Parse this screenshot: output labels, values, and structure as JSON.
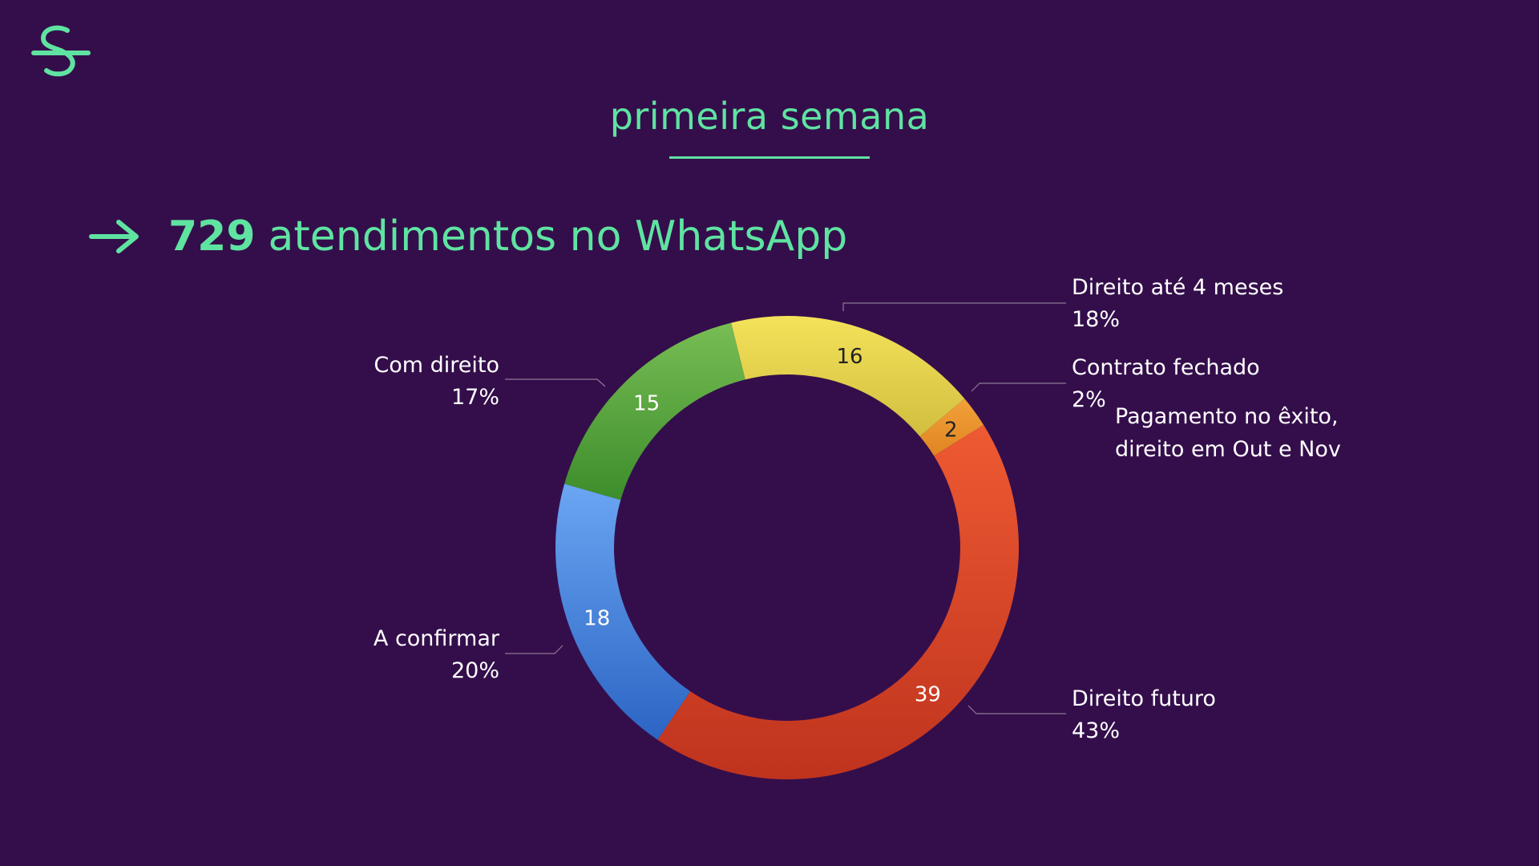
{
  "slide": {
    "title": "primeira semana",
    "headline": {
      "number": "729",
      "text": "atendimentos no WhatsApp"
    },
    "colors": {
      "background": "#340e4b",
      "accent": "#5fe3a1",
      "label_text": "#ffffff",
      "leader_line": "#8a7a94"
    },
    "icons": [
      "logo-icon",
      "arrow-right-icon"
    ]
  },
  "chart_data": {
    "type": "pie",
    "title": "primeira semana",
    "subtitle": "",
    "donut": true,
    "slices": [
      {
        "name": "Direito até 4 meses",
        "value": 16,
        "percent": "18%",
        "color_top": "#f4e25a",
        "color_bottom": "#d1be3f",
        "note": ""
      },
      {
        "name": "Contrato fechado",
        "value": 2,
        "percent": "2%",
        "color_top": "#f2a13a",
        "color_bottom": "#e08522",
        "note": "Pagamento no êxito,\ndireito em Out e Nov"
      },
      {
        "name": "Direito futuro",
        "value": 39,
        "percent": "43%",
        "color_top": "#ee5a32",
        "color_bottom": "#bf331e",
        "note": ""
      },
      {
        "name": "A confirmar",
        "value": 18,
        "percent": "20%",
        "color_top": "#6aa6f2",
        "color_bottom": "#2c64c4",
        "note": ""
      },
      {
        "name": "Com direito",
        "value": 15,
        "percent": "17%",
        "color_top": "#78bd54",
        "color_bottom": "#3c8d2c",
        "note": ""
      }
    ],
    "legend": "labels beside slices"
  }
}
